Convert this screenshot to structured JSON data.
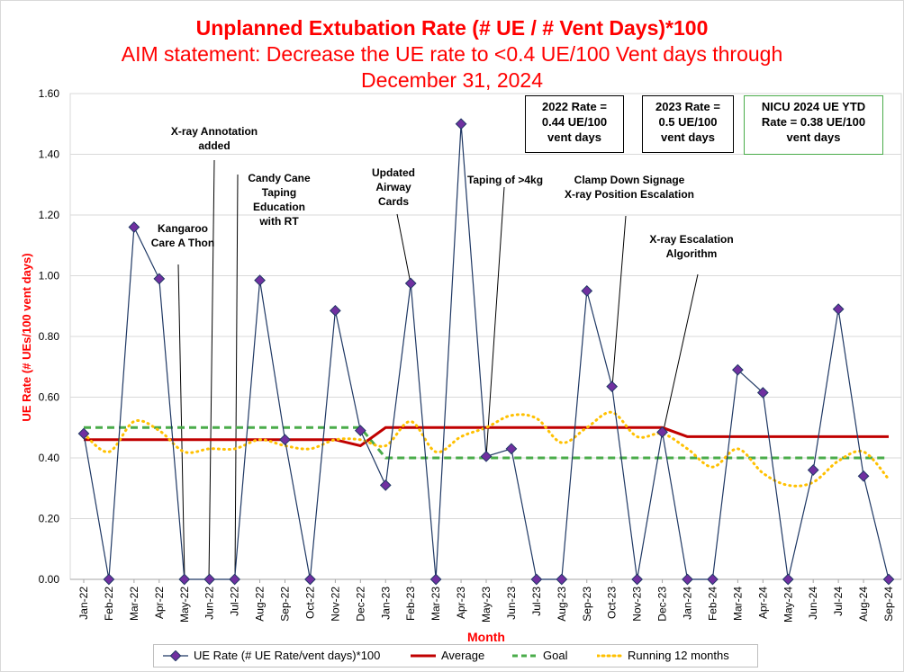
{
  "chart_data": {
    "type": "line",
    "title": "Unplanned Extubation Rate (# UE / # Vent Days)*100",
    "subtitle_line1": "AIM statement: Decrease the UE rate to <0.4 UE/100 Vent days through",
    "subtitle_line2": "December 31, 2024",
    "xlabel": "Month",
    "ylabel": "UE Rate (# UEs/100 vent days)",
    "ylim": [
      0,
      1.6
    ],
    "yticks": [
      "0.00",
      "0.20",
      "0.40",
      "0.60",
      "0.80",
      "1.00",
      "1.20",
      "1.40",
      "1.60"
    ],
    "grid": "horizontal",
    "legend_position": "bottom",
    "categories": [
      "Jan-22",
      "Feb-22",
      "Mar-22",
      "Apr-22",
      "May-22",
      "Jun-22",
      "Jul-22",
      "Aug-22",
      "Sep-22",
      "Oct-22",
      "Nov-22",
      "Dec-22",
      "Jan-23",
      "Feb-23",
      "Mar-23",
      "Apr-23",
      "May-23",
      "Jun-23",
      "Jul-23",
      "Aug-23",
      "Sep-23",
      "Oct-23",
      "Nov-23",
      "Dec-23",
      "Jan-24",
      "Feb-24",
      "Mar-24",
      "Apr-24",
      "May-24",
      "Jun-24",
      "Jul-24",
      "Aug-24",
      "Sep-24"
    ],
    "series": [
      {
        "name": "UE Rate (# UE Rate/vent days)*100",
        "color": "#1f3864",
        "marker_color": "#7030a0",
        "values": [
          0.48,
          0,
          1.16,
          0.99,
          0,
          0,
          0,
          0.985,
          0.46,
          0,
          0.885,
          0.49,
          0.31,
          0.975,
          0,
          1.5,
          0.405,
          0.43,
          0,
          0,
          0.95,
          0.635,
          0,
          0.485,
          0,
          0,
          0.69,
          0.615,
          0,
          0.36,
          0.89,
          0.34,
          0
        ]
      },
      {
        "name": "Average",
        "color": "#c00000",
        "values": [
          0.46,
          0.46,
          0.46,
          0.46,
          0.46,
          0.46,
          0.46,
          0.46,
          0.46,
          0.46,
          0.46,
          0.44,
          0.5,
          0.5,
          0.5,
          0.5,
          0.5,
          0.5,
          0.5,
          0.5,
          0.5,
          0.5,
          0.5,
          0.5,
          0.47,
          0.47,
          0.47,
          0.47,
          0.47,
          0.47,
          0.47,
          0.47,
          0.47
        ]
      },
      {
        "name": "Goal",
        "color": "#4aac4a",
        "values": [
          0.5,
          0.5,
          0.5,
          0.5,
          0.5,
          0.5,
          0.5,
          0.5,
          0.5,
          0.5,
          0.5,
          0.5,
          0.4,
          0.4,
          0.4,
          0.4,
          0.4,
          0.4,
          0.4,
          0.4,
          0.4,
          0.4,
          0.4,
          0.4,
          0.4,
          0.4,
          0.4,
          0.4,
          0.4,
          0.4,
          0.4,
          0.4,
          0.4
        ]
      },
      {
        "name": "Running 12 months",
        "color": "#ffc000",
        "values": [
          0.48,
          0.42,
          0.52,
          0.49,
          0.42,
          0.43,
          0.43,
          0.46,
          0.44,
          0.43,
          0.46,
          0.46,
          0.44,
          0.52,
          0.42,
          0.47,
          0.5,
          0.54,
          0.53,
          0.45,
          0.5,
          0.55,
          0.47,
          0.48,
          0.43,
          0.37,
          0.43,
          0.35,
          0.31,
          0.32,
          0.39,
          0.42,
          0.33
        ]
      }
    ],
    "rate_boxes": [
      {
        "text": "2022 Rate =\n0.44 UE/100\nvent days"
      },
      {
        "text": "2023 Rate =\n0.5 UE/100\nvent days"
      },
      {
        "text": "NICU 2024 UE YTD\nRate = 0.38 UE/100\nvent days"
      }
    ],
    "annotations": [
      {
        "text": "X-ray Annotation\nadded",
        "index": 5
      },
      {
        "text": "Kangaroo\nCare A Thon",
        "index": 4
      },
      {
        "text": "Candy Cane\nTaping\nEducation\nwith RT",
        "index": 6
      },
      {
        "text": "Updated\nAirway\nCards",
        "index": 13
      },
      {
        "text": "Taping of >4kg",
        "index": 16
      },
      {
        "text": "Clamp Down Signage\nX-ray Position Escalation",
        "index": 21
      },
      {
        "text": "X-ray Escalation\nAlgorithm",
        "index": 23
      }
    ]
  }
}
